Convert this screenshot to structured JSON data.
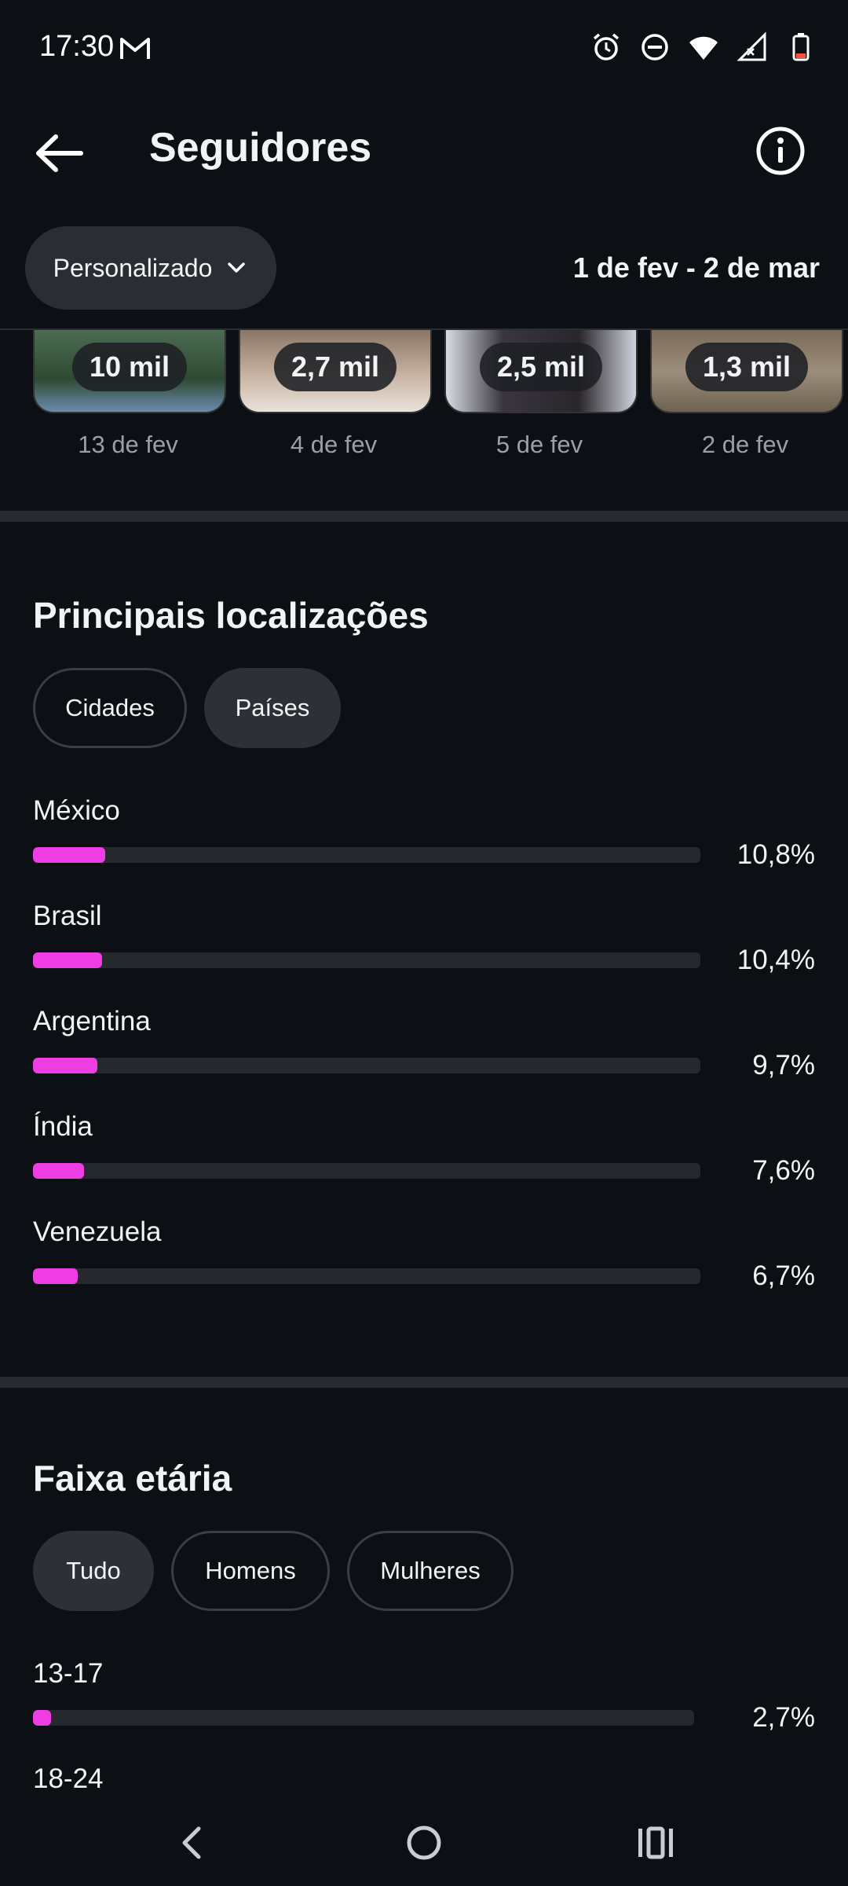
{
  "status": {
    "time": "17:30"
  },
  "header": {
    "title": "Seguidores"
  },
  "filter": {
    "range_label": "Personalizado",
    "date_range": "1 de fev - 2 de mar"
  },
  "posts": [
    {
      "views": "10 mil",
      "date": "13 de fev"
    },
    {
      "views": "2,7 mil",
      "date": "4 de fev"
    },
    {
      "views": "2,5 mil",
      "date": "5 de fev"
    },
    {
      "views": "1,3 mil",
      "date": "2 de fev"
    }
  ],
  "locations": {
    "title": "Principais localizações",
    "chips": [
      "Cidades",
      "Países"
    ],
    "selected_chip": "Países",
    "items": [
      {
        "label": "México",
        "pct": "10,8%",
        "value": 10.8
      },
      {
        "label": "Brasil",
        "pct": "10,4%",
        "value": 10.4
      },
      {
        "label": "Argentina",
        "pct": "9,7%",
        "value": 9.7
      },
      {
        "label": "Índia",
        "pct": "7,6%",
        "value": 7.6
      },
      {
        "label": "Venezuela",
        "pct": "6,7%",
        "value": 6.7
      }
    ]
  },
  "age": {
    "title": "Faixa etária",
    "chips": [
      "Tudo",
      "Homens",
      "Mulheres"
    ],
    "selected_chip": "Tudo",
    "items": [
      {
        "label": "13-17",
        "pct": "2,7%",
        "value": 2.7
      },
      {
        "label": "18-24",
        "pct": "",
        "value": null
      }
    ]
  },
  "colors": {
    "accent": "#ee3de3",
    "background": "#0c0f14",
    "track": "#25282d"
  },
  "icons": [
    "gmail-icon",
    "alarm-icon",
    "dnd-icon",
    "wifi-icon",
    "signal-icon",
    "battery-icon",
    "back-arrow-icon",
    "info-icon",
    "chevron-down-icon",
    "nav-back-icon",
    "nav-home-icon",
    "nav-recents-icon"
  ]
}
